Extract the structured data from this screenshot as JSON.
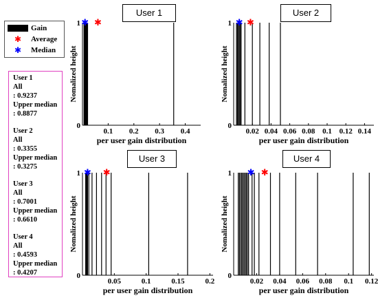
{
  "legend": [
    {
      "label": "Gain",
      "color": "#000000",
      "shape": "bar"
    },
    {
      "label": "Average",
      "color": "#ff0000",
      "shape": "star"
    },
    {
      "label": "Median",
      "color": "#0000ff",
      "shape": "star"
    }
  ],
  "stats": [
    {
      "user": "User 1",
      "all_label": "All",
      "all_value": ": 0.9237",
      "um_label": "Upper median",
      "um_value": ": 0.8877"
    },
    {
      "user": "User 2",
      "all_label": "All",
      "all_value": ": 0.3355",
      "um_label": "Upper median",
      "um_value": ": 0.3275"
    },
    {
      "user": "User 3",
      "all_label": "All",
      "all_value": ": 0.7001",
      "um_label": "Upper median",
      "um_value": ": 0.6610"
    },
    {
      "user": "User 4",
      "all_label": "All",
      "all_value": ": 0.4593",
      "um_label": "Upper median",
      "um_value": ": 0.4207"
    }
  ],
  "chart_data": [
    {
      "type": "bar",
      "title": "User 1",
      "xlabel": "per user gain distribution",
      "ylabel": "Nomalized height",
      "xlim": [
        0,
        0.46
      ],
      "ylim": [
        0,
        1
      ],
      "xticks": [
        0.1,
        0.2,
        0.3,
        0.4
      ],
      "xtick_labels": [
        "0.1",
        "0.2",
        "0.3",
        "0.4"
      ],
      "yticks": [
        0,
        1
      ],
      "ytick_labels": [
        "0",
        "1"
      ],
      "gains": [
        0.006,
        0.008,
        0.01,
        0.012,
        0.014,
        0.016,
        0.018,
        0.02,
        0.355
      ],
      "average": 0.06,
      "median": 0.01
    },
    {
      "type": "bar",
      "title": "User 2",
      "xlabel": "per user gain distribution",
      "ylabel": "Nomalized height",
      "xlim": [
        0,
        0.15
      ],
      "ylim": [
        0,
        1
      ],
      "xticks": [
        0.02,
        0.04,
        0.06,
        0.08,
        0.1,
        0.12,
        0.14
      ],
      "xtick_labels": [
        "0.02",
        "0.04",
        "0.06",
        "0.08",
        "0.1",
        "0.12",
        "0.14"
      ],
      "yticks": [
        0,
        1
      ],
      "ytick_labels": [
        "0",
        "1"
      ],
      "gains": [
        0.003,
        0.004,
        0.005,
        0.006,
        0.007,
        0.008,
        0.012,
        0.02,
        0.028,
        0.038,
        0.05
      ],
      "average": 0.018,
      "median": 0.006
    },
    {
      "type": "bar",
      "title": "User 3",
      "xlabel": "per user gain distribution",
      "ylabel": "Nomalized height",
      "xlim": [
        0,
        0.205
      ],
      "ylim": [
        0,
        1
      ],
      "xticks": [
        0.05,
        0.1,
        0.15,
        0.2
      ],
      "xtick_labels": [
        "0.05",
        "0.1",
        "0.15",
        "0.2"
      ],
      "yticks": [
        0,
        1
      ],
      "ytick_labels": [
        "0",
        "1"
      ],
      "gains": [
        0.005,
        0.006,
        0.007,
        0.008,
        0.01,
        0.015,
        0.022,
        0.03,
        0.037,
        0.045,
        0.104,
        0.165
      ],
      "average": 0.038,
      "median": 0.008
    },
    {
      "type": "bar",
      "title": "User 4",
      "xlabel": "per user gain distribution",
      "ylabel": "Nomalized height",
      "xlim": [
        0,
        0.122
      ],
      "ylim": [
        0,
        1
      ],
      "xticks": [
        0.02,
        0.04,
        0.06,
        0.08,
        0.1,
        0.12
      ],
      "xtick_labels": [
        "0.02",
        "0.04",
        "0.06",
        "0.08",
        "0.1",
        "0.12"
      ],
      "yticks": [
        0,
        1
      ],
      "ytick_labels": [
        "0",
        "1"
      ],
      "gains": [
        0.004,
        0.005,
        0.006,
        0.007,
        0.008,
        0.009,
        0.01,
        0.011,
        0.012,
        0.013,
        0.016,
        0.018,
        0.022,
        0.032,
        0.04,
        0.054,
        0.073,
        0.104,
        0.118
      ],
      "average": 0.027,
      "median": 0.015
    }
  ]
}
